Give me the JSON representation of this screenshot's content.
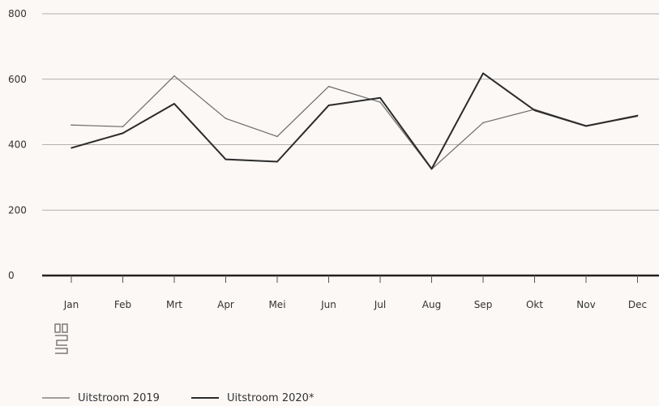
{
  "chart_data": {
    "type": "line",
    "categories": [
      "Jan",
      "Feb",
      "Mrt",
      "Apr",
      "Mei",
      "Jun",
      "Jul",
      "Aug",
      "Sep",
      "Okt",
      "Nov",
      "Dec"
    ],
    "series": [
      {
        "name": "Uitstroom 2019",
        "values": [
          460,
          455,
          610,
          480,
          425,
          578,
          530,
          325,
          467,
          508,
          458,
          490
        ],
        "color": "#6b6b6b"
      },
      {
        "name": "Uitstroom 2020*",
        "values": [
          390,
          435,
          525,
          355,
          348,
          520,
          543,
          326,
          618,
          505,
          457,
          488
        ],
        "color": "#2b2b2b"
      }
    ],
    "ylim": [
      0,
      800
    ],
    "yticks": [
      0,
      200,
      400,
      600,
      800
    ],
    "grid": true,
    "legend": "bottom-left",
    "logo": "cbs"
  }
}
